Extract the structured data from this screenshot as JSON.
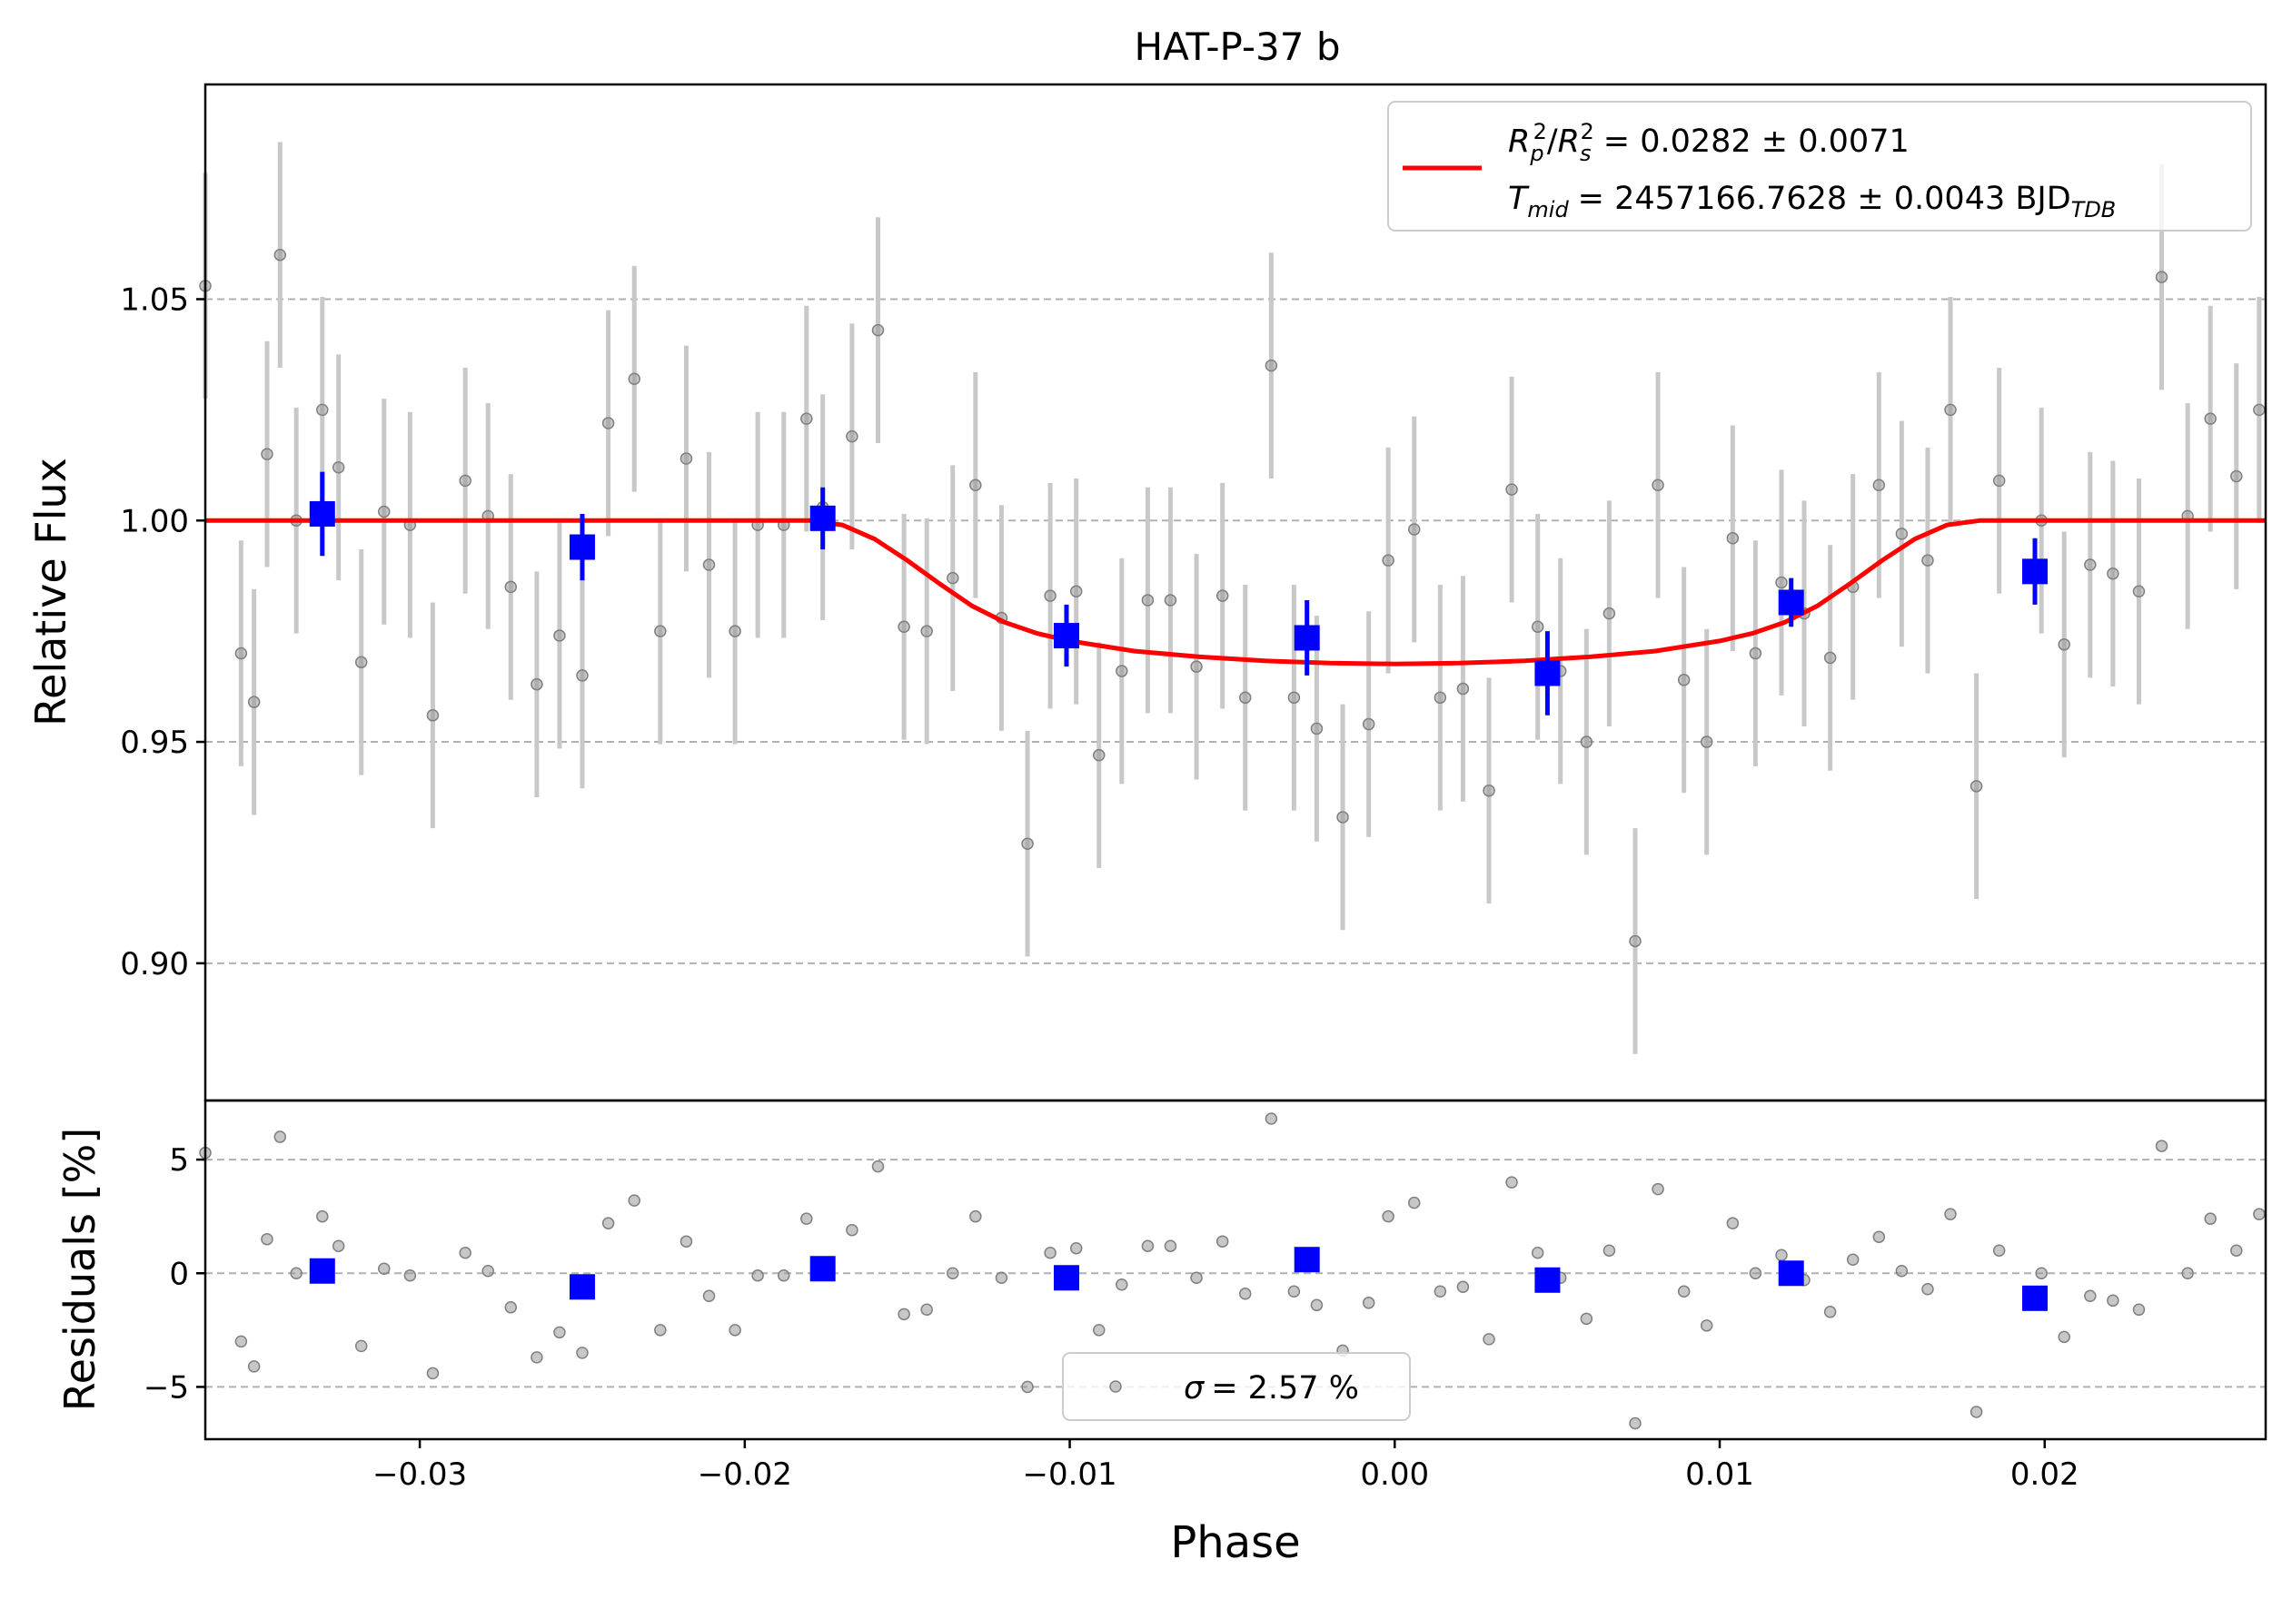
{
  "chart_data": {
    "type": "scatter",
    "title": "HAT-P-37 b",
    "xlabel": "Phase",
    "x_range": [
      -0.0366,
      0.0268
    ],
    "x_ticks": [
      -0.03,
      -0.02,
      -0.01,
      0.0,
      0.01,
      0.02
    ],
    "x_tick_labels": [
      "−0.03",
      "−0.02",
      "−0.01",
      "0.00",
      "0.01",
      "0.02"
    ],
    "grid": "horizontal dashed",
    "top_panel": {
      "ylabel": "Relative Flux",
      "y_range": [
        0.869,
        1.0985
      ],
      "y_ticks": [
        0.9,
        0.95,
        1.0,
        1.05
      ],
      "y_tick_labels": [
        "0.90",
        "0.95",
        "1.00",
        "1.05"
      ],
      "legend": {
        "placement": "upper right",
        "line1": "= 0.0282 ± 0.0071",
        "line2": "= 2457166.7628 ± 0.0043 BJD",
        "line2_subscript": "TDB",
        "symbol_rp": "R",
        "symbol_rp_sub": "p",
        "symbol_rs": "R",
        "symbol_rs_sub": "s",
        "superscript": "2",
        "symbol_t": "T",
        "symbol_t_sub": "mid"
      },
      "color_model": "#ff0000",
      "color_binned": "#0000ff",
      "color_raw": "#999999",
      "raw_error": 0.0255,
      "raw_points": [
        [
          -0.0366,
          1.053
        ],
        [
          -0.0355,
          0.97
        ],
        [
          -0.0351,
          0.959
        ],
        [
          -0.0347,
          1.015
        ],
        [
          -0.0343,
          1.06
        ],
        [
          -0.0338,
          1.0
        ],
        [
          -0.033,
          1.025
        ],
        [
          -0.0325,
          1.012
        ],
        [
          -0.0318,
          0.968
        ],
        [
          -0.0311,
          1.002
        ],
        [
          -0.0303,
          0.999
        ],
        [
          -0.0296,
          0.956
        ],
        [
          -0.0286,
          1.009
        ],
        [
          -0.0279,
          1.001
        ],
        [
          -0.0272,
          0.985
        ],
        [
          -0.0264,
          0.963
        ],
        [
          -0.0257,
          0.974
        ],
        [
          -0.025,
          0.965
        ],
        [
          -0.0242,
          1.022
        ],
        [
          -0.0234,
          1.032
        ],
        [
          -0.0226,
          0.975
        ],
        [
          -0.0218,
          1.014
        ],
        [
          -0.0211,
          0.99
        ],
        [
          -0.0203,
          0.975
        ],
        [
          -0.0196,
          0.999
        ],
        [
          -0.0188,
          0.999
        ],
        [
          -0.0181,
          1.023
        ],
        [
          -0.0176,
          1.003
        ],
        [
          -0.0167,
          1.019
        ],
        [
          -0.0159,
          1.043
        ],
        [
          -0.0151,
          0.976
        ],
        [
          -0.0144,
          0.975
        ],
        [
          -0.0136,
          0.987
        ],
        [
          -0.0129,
          1.008
        ],
        [
          -0.0121,
          0.978
        ],
        [
          -0.0113,
          0.927
        ],
        [
          -0.0106,
          0.983
        ],
        [
          -0.0098,
          0.984
        ],
        [
          -0.0091,
          0.947
        ],
        [
          -0.0084,
          0.966
        ],
        [
          -0.0076,
          0.982
        ],
        [
          -0.0069,
          0.982
        ],
        [
          -0.0061,
          0.967
        ],
        [
          -0.0053,
          0.983
        ],
        [
          -0.0046,
          0.96
        ],
        [
          -0.0038,
          1.035
        ],
        [
          -0.0031,
          0.96
        ],
        [
          -0.0024,
          0.953
        ],
        [
          -0.0016,
          0.933
        ],
        [
          -0.0008,
          0.954
        ],
        [
          -0.0002,
          0.991
        ],
        [
          0.0006,
          0.998
        ],
        [
          0.0014,
          0.96
        ],
        [
          0.0021,
          0.962
        ],
        [
          0.0029,
          0.939
        ],
        [
          0.0036,
          1.007
        ],
        [
          0.0044,
          0.976
        ],
        [
          0.0051,
          0.966
        ],
        [
          0.0059,
          0.95
        ],
        [
          0.0066,
          0.979
        ],
        [
          0.0074,
          0.905
        ],
        [
          0.0081,
          1.008
        ],
        [
          0.0089,
          0.964
        ],
        [
          0.0096,
          0.95
        ],
        [
          0.0104,
          0.996
        ],
        [
          0.0111,
          0.97
        ],
        [
          0.0119,
          0.986
        ],
        [
          0.0126,
          0.979
        ],
        [
          0.0134,
          0.969
        ],
        [
          0.0141,
          0.985
        ],
        [
          0.0149,
          1.008
        ],
        [
          0.0156,
          0.997
        ],
        [
          0.0164,
          0.991
        ],
        [
          0.0171,
          1.025
        ],
        [
          0.0179,
          0.94
        ],
        [
          0.0186,
          1.009
        ],
        [
          0.0199,
          1.0
        ],
        [
          0.0206,
          0.972
        ],
        [
          0.0214,
          0.99
        ],
        [
          0.0221,
          0.988
        ],
        [
          0.0229,
          0.984
        ],
        [
          0.0236,
          1.055
        ],
        [
          0.0244,
          1.001
        ],
        [
          0.0251,
          1.023
        ],
        [
          0.0259,
          1.01
        ],
        [
          0.0266,
          1.025
        ]
      ],
      "binned_points": [
        [
          -0.033,
          1.0015,
          0.0095
        ],
        [
          -0.025,
          0.994,
          0.0075
        ],
        [
          -0.0176,
          1.0005,
          0.007
        ],
        [
          -0.0101,
          0.974,
          0.007
        ],
        [
          -0.0027,
          0.9735,
          0.0085
        ],
        [
          0.0047,
          0.9655,
          0.0095
        ],
        [
          0.0122,
          0.9815,
          0.0055
        ],
        [
          0.0197,
          0.9885,
          0.0075
        ]
      ],
      "model": [
        [
          -0.0366,
          1.0
        ],
        [
          -0.018,
          1.0
        ],
        [
          -0.017,
          0.999
        ],
        [
          -0.016,
          0.9958
        ],
        [
          -0.015,
          0.991
        ],
        [
          -0.014,
          0.9857
        ],
        [
          -0.013,
          0.9807
        ],
        [
          -0.012,
          0.977
        ],
        [
          -0.011,
          0.9745
        ],
        [
          -0.01,
          0.9728
        ],
        [
          -0.008,
          0.9705
        ],
        [
          -0.006,
          0.9692
        ],
        [
          -0.004,
          0.9683
        ],
        [
          -0.002,
          0.9678
        ],
        [
          0.0,
          0.9676
        ],
        [
          0.002,
          0.9678
        ],
        [
          0.004,
          0.9683
        ],
        [
          0.006,
          0.9692
        ],
        [
          0.008,
          0.9705
        ],
        [
          0.01,
          0.9728
        ],
        [
          0.011,
          0.9745
        ],
        [
          0.012,
          0.977
        ],
        [
          0.013,
          0.9807
        ],
        [
          0.014,
          0.9857
        ],
        [
          0.015,
          0.991
        ],
        [
          0.016,
          0.9958
        ],
        [
          0.017,
          0.999
        ],
        [
          0.018,
          1.0
        ],
        [
          0.0268,
          1.0
        ]
      ]
    },
    "bottom_panel": {
      "ylabel": "Residuals [%]",
      "y_range": [
        -7.3,
        7.6
      ],
      "y_ticks": [
        -5,
        0,
        5
      ],
      "y_tick_labels": [
        "−5",
        "0",
        "5"
      ],
      "legend": {
        "placement": "lower center",
        "sigma_symbol": "σ",
        "text": "= 2.57 %"
      },
      "raw_points": [
        [
          -0.0366,
          5.3
        ],
        [
          -0.0355,
          -3.0
        ],
        [
          -0.0351,
          -4.1
        ],
        [
          -0.0347,
          1.5
        ],
        [
          -0.0343,
          6.0
        ],
        [
          -0.0338,
          0.0
        ],
        [
          -0.033,
          2.5
        ],
        [
          -0.0325,
          1.2
        ],
        [
          -0.0318,
          -3.2
        ],
        [
          -0.0311,
          0.2
        ],
        [
          -0.0303,
          -0.1
        ],
        [
          -0.0296,
          -4.4
        ],
        [
          -0.0286,
          0.9
        ],
        [
          -0.0279,
          0.1
        ],
        [
          -0.0272,
          -1.5
        ],
        [
          -0.0264,
          -3.7
        ],
        [
          -0.0257,
          -2.6
        ],
        [
          -0.025,
          -3.5
        ],
        [
          -0.0242,
          2.2
        ],
        [
          -0.0234,
          3.2
        ],
        [
          -0.0226,
          -2.5
        ],
        [
          -0.0218,
          1.4
        ],
        [
          -0.0211,
          -1.0
        ],
        [
          -0.0203,
          -2.5
        ],
        [
          -0.0196,
          -0.1
        ],
        [
          -0.0188,
          -0.1
        ],
        [
          -0.0181,
          2.4
        ],
        [
          -0.0176,
          0.3
        ],
        [
          -0.0167,
          1.9
        ],
        [
          -0.0159,
          4.7
        ],
        [
          -0.0151,
          -1.8
        ],
        [
          -0.0144,
          -1.6
        ],
        [
          -0.0136,
          0.0
        ],
        [
          -0.0129,
          2.5
        ],
        [
          -0.0121,
          -0.2
        ],
        [
          -0.0113,
          -5.0
        ],
        [
          -0.0106,
          0.9
        ],
        [
          -0.0098,
          1.1
        ],
        [
          -0.0091,
          -2.5
        ],
        [
          -0.0084,
          -0.5
        ],
        [
          -0.0076,
          1.2
        ],
        [
          -0.0069,
          1.2
        ],
        [
          -0.0061,
          -0.2
        ],
        [
          -0.0053,
          1.4
        ],
        [
          -0.0046,
          -0.9
        ],
        [
          -0.0038,
          6.8
        ],
        [
          -0.0031,
          -0.8
        ],
        [
          -0.0024,
          -1.4
        ],
        [
          -0.0016,
          -3.4
        ],
        [
          -0.0008,
          -1.3
        ],
        [
          -0.0002,
          2.5
        ],
        [
          0.0006,
          3.1
        ],
        [
          0.0014,
          -0.8
        ],
        [
          0.0021,
          -0.6
        ],
        [
          0.0029,
          -2.9
        ],
        [
          0.0036,
          4.0
        ],
        [
          0.0044,
          0.9
        ],
        [
          0.0051,
          -0.2
        ],
        [
          0.0059,
          -2.0
        ],
        [
          0.0066,
          1.0
        ],
        [
          0.0074,
          -6.6
        ],
        [
          0.0081,
          3.7
        ],
        [
          0.0089,
          -0.8
        ],
        [
          0.0096,
          -2.3
        ],
        [
          0.0104,
          2.2
        ],
        [
          0.0111,
          0.0
        ],
        [
          0.0119,
          0.8
        ],
        [
          0.0126,
          -0.3
        ],
        [
          0.0134,
          -1.7
        ],
        [
          0.0141,
          0.6
        ],
        [
          0.0149,
          1.6
        ],
        [
          0.0156,
          0.1
        ],
        [
          0.0164,
          -0.7
        ],
        [
          0.0171,
          2.6
        ],
        [
          0.0179,
          -6.1
        ],
        [
          0.0186,
          1.0
        ],
        [
          0.0199,
          0.0
        ],
        [
          0.0206,
          -2.8
        ],
        [
          0.0214,
          -1.0
        ],
        [
          0.0221,
          -1.2
        ],
        [
          0.0229,
          -1.6
        ],
        [
          0.0236,
          5.6
        ],
        [
          0.0244,
          0.0
        ],
        [
          0.0251,
          2.4
        ],
        [
          0.0259,
          1.0
        ],
        [
          0.0266,
          2.6
        ]
      ],
      "binned_points": [
        [
          -0.033,
          0.1
        ],
        [
          -0.025,
          -0.6
        ],
        [
          -0.0176,
          0.2
        ],
        [
          -0.0101,
          -0.2
        ],
        [
          -0.0027,
          0.6
        ],
        [
          0.0047,
          -0.3
        ],
        [
          0.0122,
          0.0
        ],
        [
          0.0197,
          -1.1
        ]
      ]
    }
  }
}
